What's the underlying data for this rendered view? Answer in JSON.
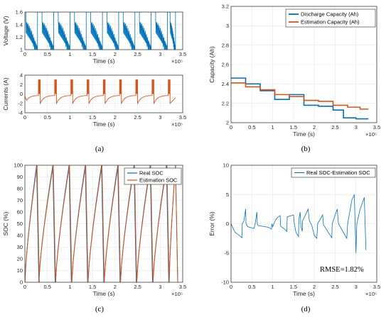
{
  "colors": {
    "blue": "#0072BD",
    "orange": "#D95319",
    "axis": "#262626",
    "grid": "#e6e6e6"
  },
  "chart_data": [
    {
      "id": "voltage",
      "type": "line",
      "panel": "(a)",
      "ylabel": "Voltage (V)",
      "xlabel": "Time (s)",
      "x_multiplier": "×10⁵",
      "xlim": [
        0,
        3.5
      ],
      "ylim": [
        1,
        1.6
      ],
      "xticks": [
        "0",
        "0.5",
        "1",
        "1.5",
        "2",
        "2.5",
        "3",
        "3.5"
      ],
      "yticks": [
        "1",
        "1.2",
        "1.4",
        "1.6"
      ],
      "grid": true,
      "series": [
        {
          "color": "#0072BD",
          "cycles": [
            [
              0.0,
              0.28
            ],
            [
              0.36,
              0.64
            ],
            [
              0.72,
              1.0
            ],
            [
              1.08,
              1.36
            ],
            [
              1.44,
              1.72
            ],
            [
              1.8,
              2.08
            ],
            [
              2.16,
              2.44
            ],
            [
              2.52,
              2.8
            ],
            [
              2.88,
              3.16
            ],
            [
              3.2,
              3.34
            ]
          ],
          "rest_level": 1.6,
          "discharge_start": 1.45,
          "discharge_end": 1.0
        }
      ]
    },
    {
      "id": "current",
      "type": "line",
      "panel": "(a)",
      "ylabel": "Currents (A)",
      "xlabel": "Time (s)",
      "x_multiplier": "×10⁵",
      "xlim": [
        0,
        3.5
      ],
      "ylim": [
        -4,
        4
      ],
      "xticks": [
        "0",
        "0.5",
        "1",
        "1.5",
        "2",
        "2.5",
        "3",
        "3.5"
      ],
      "yticks": [
        "-4",
        "-2",
        "0",
        "2",
        "4"
      ],
      "grid": true,
      "series": [
        {
          "color": "#D95319",
          "pulses": [
            0.3,
            0.66,
            1.02,
            1.38,
            1.74,
            2.1,
            2.46,
            2.82,
            3.18
          ],
          "pulse_width": 0.04,
          "pulse_level": 3.0,
          "rest_start": -2.0,
          "rest_end": -0.3
        }
      ]
    },
    {
      "id": "capacity",
      "type": "line",
      "panel": "(b)",
      "ylabel": "Capacity (Ah)",
      "xlabel": "Time (s)",
      "x_multiplier": "×10⁵",
      "xlim": [
        0,
        3.5
      ],
      "ylim": [
        2,
        3.2
      ],
      "xticks": [
        "0",
        "0.5",
        "1",
        "1.5",
        "2",
        "2.5",
        "3",
        "3.5"
      ],
      "yticks": [
        "2",
        "2.2",
        "2.4",
        "2.6",
        "2.8",
        "3",
        "3.2"
      ],
      "grid": true,
      "legend": "top-right",
      "series": [
        {
          "name": "Discharge Capacity (Ah)",
          "color": "#0072BD",
          "steps": [
            [
              0.0,
              2.46
            ],
            [
              0.35,
              2.4
            ],
            [
              0.7,
              2.33
            ],
            [
              1.05,
              2.24
            ],
            [
              1.4,
              2.29
            ],
            [
              1.75,
              2.18
            ],
            [
              2.1,
              2.17
            ],
            [
              2.45,
              2.13
            ],
            [
              2.7,
              2.05
            ],
            [
              3.0,
              2.04
            ],
            [
              3.3,
              2.04
            ]
          ]
        },
        {
          "name": "Estimation Capacity (Ah)",
          "color": "#D95319",
          "steps": [
            [
              0.0,
              2.41
            ],
            [
              0.35,
              2.37
            ],
            [
              0.7,
              2.34
            ],
            [
              1.05,
              2.29
            ],
            [
              1.4,
              2.27
            ],
            [
              1.75,
              2.23
            ],
            [
              2.1,
              2.22
            ],
            [
              2.45,
              2.18
            ],
            [
              2.8,
              2.16
            ],
            [
              3.1,
              2.14
            ],
            [
              3.3,
              2.14
            ]
          ]
        }
      ]
    },
    {
      "id": "soc",
      "type": "line",
      "panel": "(c)",
      "ylabel": "SOC (%)",
      "xlabel": "Time (s)",
      "x_multiplier": "×10⁵",
      "xlim": [
        0,
        3.5
      ],
      "ylim": [
        0,
        100
      ],
      "xticks": [
        "0",
        "0.5",
        "1",
        "1.5",
        "2",
        "2.5",
        "3",
        "3.5"
      ],
      "yticks": [
        "0",
        "10",
        "20",
        "30",
        "40",
        "50",
        "60",
        "70",
        "80",
        "90",
        "100"
      ],
      "grid": true,
      "legend": "top-right",
      "series": [
        {
          "name": "Real SOC",
          "color": "#0072BD",
          "cycles": [
            [
              0.0,
              0.26
            ],
            [
              0.31,
              0.62
            ],
            [
              0.68,
              0.98
            ],
            [
              1.04,
              1.34
            ],
            [
              1.4,
              1.7
            ],
            [
              1.76,
              2.06
            ],
            [
              2.12,
              2.42
            ],
            [
              2.48,
              2.78
            ],
            [
              2.84,
              3.14
            ],
            [
              3.2,
              3.34
            ]
          ]
        },
        {
          "name": "Estimation SOC",
          "color": "#D95319",
          "cycles": [
            [
              0.0,
              0.27
            ],
            [
              0.31,
              0.63
            ],
            [
              0.68,
              0.99
            ],
            [
              1.04,
              1.35
            ],
            [
              1.4,
              1.71
            ],
            [
              1.76,
              2.07
            ],
            [
              2.12,
              2.43
            ],
            [
              2.48,
              2.79
            ],
            [
              2.84,
              3.15
            ],
            [
              3.2,
              3.34
            ]
          ]
        }
      ]
    },
    {
      "id": "error",
      "type": "line",
      "panel": "(d)",
      "ylabel": "Error (%)",
      "xlabel": "Time (s)",
      "x_multiplier": "×10⁵",
      "xlim": [
        0,
        3.5
      ],
      "ylim": [
        -10,
        10
      ],
      "xticks": [
        "0",
        "0.5",
        "1",
        "1.5",
        "2",
        "2.5",
        "3",
        "3.5"
      ],
      "yticks": [
        "-10",
        "-5",
        "0",
        "5",
        "10"
      ],
      "grid": true,
      "legend": "top-right",
      "annotation": "RMSE=1.82%",
      "series": [
        {
          "name": "Real SOC-Estimation SOC",
          "color": "#0072BD",
          "points": [
            [
              0.0,
              0.0
            ],
            [
              0.05,
              -0.8
            ],
            [
              0.1,
              -1.5
            ],
            [
              0.2,
              -2.0
            ],
            [
              0.26,
              -2.4
            ],
            [
              0.27,
              0.0
            ],
            [
              0.31,
              0.5
            ],
            [
              0.35,
              2.5
            ],
            [
              0.36,
              0.0
            ],
            [
              0.4,
              -0.5
            ],
            [
              0.55,
              -0.8
            ],
            [
              0.58,
              0.0
            ],
            [
              0.62,
              2.0
            ],
            [
              0.63,
              0.0
            ],
            [
              0.65,
              -0.3
            ],
            [
              0.9,
              -0.6
            ],
            [
              0.97,
              -0.9
            ],
            [
              0.98,
              0.0
            ],
            [
              1.0,
              -0.5
            ],
            [
              1.06,
              0.5
            ],
            [
              1.1,
              1.0
            ],
            [
              1.18,
              1.4
            ],
            [
              1.19,
              -0.4
            ],
            [
              1.3,
              -1.0
            ],
            [
              1.34,
              -1.3
            ],
            [
              1.35,
              1.2
            ],
            [
              1.5,
              1.5
            ],
            [
              1.52,
              0.0
            ],
            [
              1.56,
              -1.5
            ],
            [
              1.62,
              -2.2
            ],
            [
              1.63,
              0.8
            ],
            [
              1.66,
              2.0
            ],
            [
              1.68,
              -0.5
            ],
            [
              1.71,
              -1.3
            ],
            [
              1.72,
              0.5
            ],
            [
              1.85,
              2.5
            ],
            [
              1.88,
              0.5
            ],
            [
              1.94,
              -0.3
            ],
            [
              2.0,
              -2.0
            ],
            [
              2.06,
              -2.5
            ],
            [
              2.08,
              0.0
            ],
            [
              2.2,
              1.5
            ],
            [
              2.22,
              -0.2
            ],
            [
              2.42,
              -2.4
            ],
            [
              2.43,
              0.0
            ],
            [
              2.55,
              2.5
            ],
            [
              2.58,
              0.0
            ],
            [
              2.78,
              -2.5
            ],
            [
              2.8,
              0.0
            ],
            [
              2.9,
              4.0
            ],
            [
              2.96,
              5.0
            ],
            [
              3.0,
              -5.0
            ],
            [
              3.02,
              0.0
            ],
            [
              3.1,
              2.5
            ],
            [
              3.2,
              4.5
            ],
            [
              3.24,
              -4.5
            ]
          ]
        }
      ]
    }
  ],
  "panel_labels": [
    "(a)",
    "(b)",
    "(c)",
    "(d)"
  ]
}
